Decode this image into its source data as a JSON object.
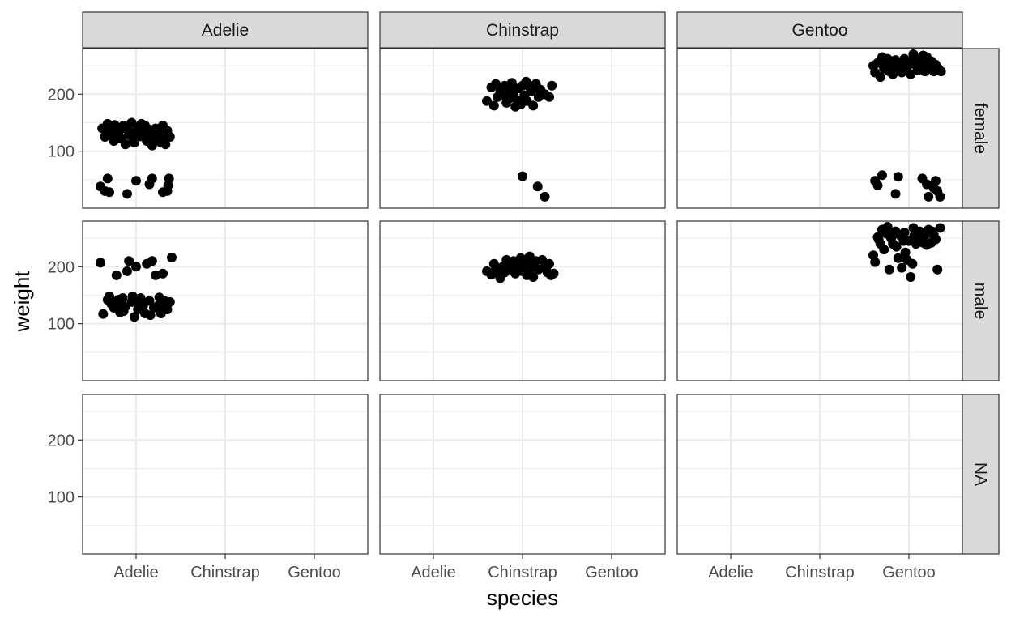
{
  "chart_data": {
    "type": "scatter",
    "facet_cols": [
      "Adelie",
      "Chinstrap",
      "Gentoo"
    ],
    "facet_rows": [
      "female",
      "male",
      "NA"
    ],
    "x_categories": [
      "Adelie",
      "Chinstrap",
      "Gentoo"
    ],
    "xlabel": "species",
    "ylabel": "weight",
    "ylim": [
      0,
      280
    ],
    "yticks": [
      100,
      200
    ],
    "ytick_labels": [
      "100",
      "200"
    ],
    "grid": true,
    "jitter": true,
    "panels": [
      {
        "col": "Adelie",
        "row": "female",
        "points": [
          [
            0.62,
            140
          ],
          [
            0.65,
            125
          ],
          [
            0.68,
            148
          ],
          [
            0.72,
            135
          ],
          [
            0.75,
            118
          ],
          [
            0.78,
            142
          ],
          [
            0.8,
            130
          ],
          [
            0.83,
            122
          ],
          [
            0.86,
            145
          ],
          [
            0.88,
            112
          ],
          [
            0.9,
            138
          ],
          [
            0.92,
            128
          ],
          [
            0.95,
            150
          ],
          [
            0.97,
            120
          ],
          [
            1.0,
            135
          ],
          [
            1.02,
            142
          ],
          [
            1.05,
            126
          ],
          [
            1.08,
            132
          ],
          [
            1.1,
            145
          ],
          [
            1.12,
            118
          ],
          [
            1.15,
            138
          ],
          [
            1.18,
            110
          ],
          [
            1.2,
            128
          ],
          [
            1.22,
            140
          ],
          [
            1.25,
            132
          ],
          [
            1.28,
            115
          ],
          [
            1.3,
            145
          ],
          [
            1.32,
            122
          ],
          [
            1.35,
            136
          ],
          [
            1.38,
            125
          ],
          [
            0.7,
            130
          ],
          [
            0.85,
            140
          ],
          [
            0.98,
            115
          ],
          [
            1.06,
            148
          ],
          [
            1.16,
            124
          ],
          [
            1.26,
            138
          ],
          [
            1.33,
            112
          ],
          [
            0.76,
            146
          ],
          [
            0.94,
            133
          ],
          [
            1.24,
            121
          ],
          [
            0.6,
            38
          ],
          [
            0.65,
            30
          ],
          [
            0.68,
            52
          ],
          [
            0.7,
            28
          ],
          [
            0.9,
            25
          ],
          [
            1.0,
            48
          ],
          [
            1.15,
            42
          ],
          [
            1.18,
            52
          ],
          [
            1.3,
            28
          ],
          [
            1.35,
            30
          ],
          [
            1.36,
            40
          ],
          [
            1.37,
            52
          ]
        ]
      },
      {
        "col": "Chinstrap",
        "row": "female",
        "points": [
          [
            1.6,
            188
          ],
          [
            1.65,
            212
          ],
          [
            1.68,
            180
          ],
          [
            1.7,
            218
          ],
          [
            1.72,
            195
          ],
          [
            1.75,
            205
          ],
          [
            1.8,
            215
          ],
          [
            1.82,
            185
          ],
          [
            1.85,
            192
          ],
          [
            1.88,
            220
          ],
          [
            1.9,
            200
          ],
          [
            1.92,
            178
          ],
          [
            1.95,
            210
          ],
          [
            1.98,
            182
          ],
          [
            2.0,
            215
          ],
          [
            2.02,
            198
          ],
          [
            2.05,
            188
          ],
          [
            2.08,
            212
          ],
          [
            2.1,
            205
          ],
          [
            2.12,
            180
          ],
          [
            2.15,
            218
          ],
          [
            2.18,
            195
          ],
          [
            2.2,
            208
          ],
          [
            2.25,
            200
          ],
          [
            2.3,
            195
          ],
          [
            2.33,
            215
          ],
          [
            1.78,
            198
          ],
          [
            1.86,
            208
          ],
          [
            1.94,
            190
          ],
          [
            2.04,
            222
          ],
          [
            2.0,
            56
          ],
          [
            2.17,
            38
          ],
          [
            2.25,
            20
          ]
        ]
      },
      {
        "col": "Gentoo",
        "row": "female",
        "points": [
          [
            2.6,
            250
          ],
          [
            2.62,
            238
          ],
          [
            2.65,
            255
          ],
          [
            2.68,
            230
          ],
          [
            2.7,
            265
          ],
          [
            2.72,
            245
          ],
          [
            2.75,
            258
          ],
          [
            2.78,
            240
          ],
          [
            2.8,
            250
          ],
          [
            2.82,
            235
          ],
          [
            2.85,
            260
          ],
          [
            2.88,
            245
          ],
          [
            2.9,
            252
          ],
          [
            2.92,
            238
          ],
          [
            2.95,
            262
          ],
          [
            2.98,
            248
          ],
          [
            3.0,
            258
          ],
          [
            3.02,
            235
          ],
          [
            3.05,
            270
          ],
          [
            3.08,
            250
          ],
          [
            3.1,
            242
          ],
          [
            3.12,
            262
          ],
          [
            3.15,
            255
          ],
          [
            3.18,
            240
          ],
          [
            3.2,
            265
          ],
          [
            3.22,
            248
          ],
          [
            3.25,
            258
          ],
          [
            3.28,
            240
          ],
          [
            3.3,
            252
          ],
          [
            3.33,
            245
          ],
          [
            3.36,
            240
          ],
          [
            2.76,
            262
          ],
          [
            2.96,
            242
          ],
          [
            3.06,
            255
          ],
          [
            3.16,
            268
          ],
          [
            3.26,
            246
          ],
          [
            2.62,
            48
          ],
          [
            2.65,
            40
          ],
          [
            2.7,
            58
          ],
          [
            2.85,
            25
          ],
          [
            2.88,
            55
          ],
          [
            3.15,
            52
          ],
          [
            3.2,
            42
          ],
          [
            3.22,
            20
          ],
          [
            3.28,
            35
          ],
          [
            3.3,
            48
          ],
          [
            3.32,
            30
          ],
          [
            3.35,
            20
          ]
        ]
      },
      {
        "col": "Adelie",
        "row": "male",
        "points": [
          [
            0.6,
            207
          ],
          [
            0.63,
            117
          ],
          [
            0.7,
            148
          ],
          [
            0.72,
            135
          ],
          [
            0.75,
            128
          ],
          [
            0.78,
            185
          ],
          [
            0.8,
            142
          ],
          [
            0.82,
            120
          ],
          [
            0.85,
            145
          ],
          [
            0.88,
            130
          ],
          [
            0.9,
            192
          ],
          [
            0.92,
            210
          ],
          [
            0.95,
            138
          ],
          [
            0.98,
            112
          ],
          [
            1.0,
            200
          ],
          [
            1.02,
            125
          ],
          [
            1.05,
            145
          ],
          [
            1.08,
            132
          ],
          [
            1.1,
            118
          ],
          [
            1.12,
            205
          ],
          [
            1.15,
            140
          ],
          [
            1.18,
            210
          ],
          [
            1.2,
            128
          ],
          [
            1.22,
            185
          ],
          [
            1.25,
            132
          ],
          [
            1.28,
            118
          ],
          [
            1.3,
            188
          ],
          [
            1.32,
            140
          ],
          [
            1.35,
            125
          ],
          [
            1.38,
            138
          ],
          [
            1.4,
            216
          ],
          [
            0.68,
            142
          ],
          [
            0.86,
            122
          ],
          [
            0.96,
            148
          ],
          [
            1.06,
            136
          ],
          [
            1.16,
            115
          ],
          [
            1.26,
            146
          ],
          [
            1.34,
            130
          ],
          [
            0.79,
            135
          ],
          [
            1.03,
            140
          ]
        ]
      },
      {
        "col": "Chinstrap",
        "row": "male",
        "points": [
          [
            1.6,
            192
          ],
          [
            1.65,
            186
          ],
          [
            1.68,
            205
          ],
          [
            1.7,
            198
          ],
          [
            1.72,
            188
          ],
          [
            1.75,
            180
          ],
          [
            1.78,
            200
          ],
          [
            1.82,
            212
          ],
          [
            1.85,
            195
          ],
          [
            1.88,
            205
          ],
          [
            1.9,
            210
          ],
          [
            1.92,
            188
          ],
          [
            1.95,
            200
          ],
          [
            1.98,
            215
          ],
          [
            2.0,
            192
          ],
          [
            2.02,
            205
          ],
          [
            2.05,
            185
          ],
          [
            2.08,
            218
          ],
          [
            2.1,
            198
          ],
          [
            2.12,
            182
          ],
          [
            2.15,
            210
          ],
          [
            2.18,
            195
          ],
          [
            2.22,
            212
          ],
          [
            2.25,
            200
          ],
          [
            2.28,
            190
          ],
          [
            2.3,
            205
          ],
          [
            2.32,
            185
          ],
          [
            2.35,
            188
          ],
          [
            1.8,
            190
          ],
          [
            2.06,
            208
          ]
        ]
      },
      {
        "col": "Gentoo",
        "row": "male",
        "points": [
          [
            2.6,
            220
          ],
          [
            2.62,
            208
          ],
          [
            2.65,
            252
          ],
          [
            2.68,
            240
          ],
          [
            2.7,
            265
          ],
          [
            2.72,
            230
          ],
          [
            2.75,
            258
          ],
          [
            2.78,
            195
          ],
          [
            2.8,
            250
          ],
          [
            2.82,
            240
          ],
          [
            2.85,
            262
          ],
          [
            2.88,
            215
          ],
          [
            2.9,
            255
          ],
          [
            2.92,
            198
          ],
          [
            2.95,
            260
          ],
          [
            2.98,
            212
          ],
          [
            3.0,
            245
          ],
          [
            3.02,
            182
          ],
          [
            3.05,
            268
          ],
          [
            3.08,
            240
          ],
          [
            3.1,
            250
          ],
          [
            3.12,
            262
          ],
          [
            3.15,
            245
          ],
          [
            3.18,
            255
          ],
          [
            3.2,
            238
          ],
          [
            3.22,
            265
          ],
          [
            3.25,
            242
          ],
          [
            3.28,
            255
          ],
          [
            3.3,
            248
          ],
          [
            3.32,
            195
          ],
          [
            3.35,
            268
          ],
          [
            2.66,
            248
          ],
          [
            2.86,
            235
          ],
          [
            2.96,
            225
          ],
          [
            3.06,
            255
          ],
          [
            3.16,
            242
          ],
          [
            3.26,
            262
          ],
          [
            2.76,
            270
          ],
          [
            2.94,
            245
          ],
          [
            3.04,
            205
          ]
        ]
      },
      {
        "col": "Adelie",
        "row": "NA",
        "points": []
      },
      {
        "col": "Chinstrap",
        "row": "NA",
        "points": []
      },
      {
        "col": "Gentoo",
        "row": "NA",
        "points": []
      }
    ]
  }
}
